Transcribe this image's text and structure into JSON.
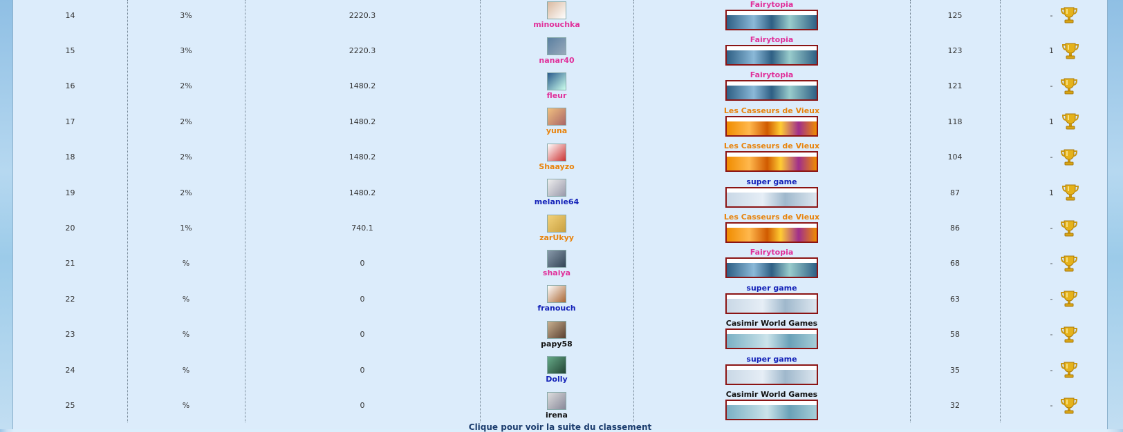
{
  "colors": {
    "Fairytopia": "#e0309a",
    "Les Casseurs de Vieux": "#e8830b",
    "super game": "#1422b8",
    "Casimir World Games": "#111111"
  },
  "rows": [
    {
      "rank": "14",
      "pct": "3%",
      "pts": "2220.3",
      "player": "minouchka",
      "team": "Fairytopia",
      "score": "125",
      "medals": "-"
    },
    {
      "rank": "15",
      "pct": "3%",
      "pts": "2220.3",
      "player": "nanar40",
      "team": "Fairytopia",
      "score": "123",
      "medals": "1"
    },
    {
      "rank": "16",
      "pct": "2%",
      "pts": "1480.2",
      "player": "fleur",
      "team": "Fairytopia",
      "score": "121",
      "medals": "-"
    },
    {
      "rank": "17",
      "pct": "2%",
      "pts": "1480.2",
      "player": "yuna",
      "team": "Les Casseurs de Vieux",
      "score": "118",
      "medals": "1"
    },
    {
      "rank": "18",
      "pct": "2%",
      "pts": "1480.2",
      "player": "Shaayzo",
      "team": "Les Casseurs de Vieux",
      "score": "104",
      "medals": "-"
    },
    {
      "rank": "19",
      "pct": "2%",
      "pts": "1480.2",
      "player": "melanie64",
      "team": "super game",
      "score": "87",
      "medals": "1"
    },
    {
      "rank": "20",
      "pct": "1%",
      "pts": "740.1",
      "player": "zarUkyy",
      "team": "Les Casseurs de Vieux",
      "score": "86",
      "medals": "-"
    },
    {
      "rank": "21",
      "pct": "%",
      "pts": "0",
      "player": "shaiya",
      "team": "Fairytopia",
      "score": "68",
      "medals": "-"
    },
    {
      "rank": "22",
      "pct": "%",
      "pts": "0",
      "player": "franouch",
      "team": "super game",
      "score": "63",
      "medals": "-"
    },
    {
      "rank": "23",
      "pct": "%",
      "pts": "0",
      "player": "papy58",
      "team": "Casimir World Games",
      "score": "58",
      "medals": "-"
    },
    {
      "rank": "24",
      "pct": "%",
      "pts": "0",
      "player": "Dolly",
      "team": "super game",
      "score": "35",
      "medals": "-"
    },
    {
      "rank": "25",
      "pct": "%",
      "pts": "0",
      "player": "irena",
      "team": "Casimir World Games",
      "score": "32",
      "medals": "-"
    }
  ],
  "footer_link": "Clique pour voir la suite du classement"
}
